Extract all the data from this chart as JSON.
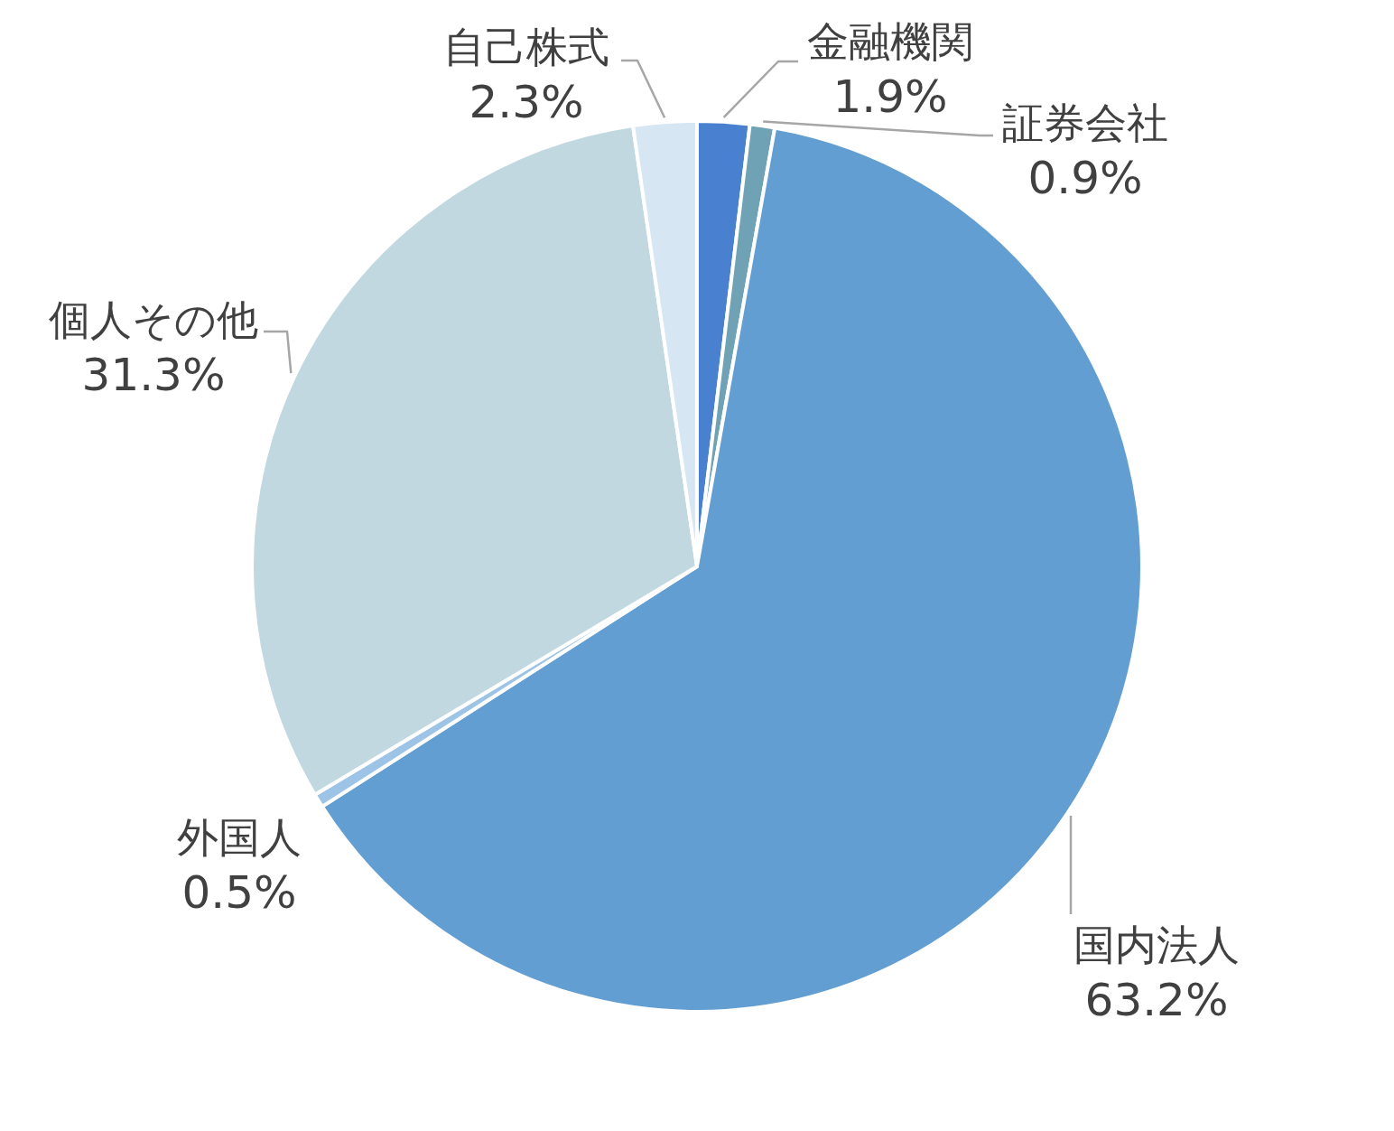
{
  "chart_data": {
    "type": "pie",
    "categories": [
      "金融機関",
      "証券会社",
      "国内法人",
      "外国人",
      "個人その他",
      "自己株式"
    ],
    "values": [
      1.9,
      0.9,
      63.2,
      0.5,
      31.3,
      2.3
    ],
    "colors": [
      "#4a80d0",
      "#6fa2b4",
      "#629ed1",
      "#9dc3e6",
      "#c1d8e0",
      "#d6e6f3"
    ],
    "value_labels": [
      "1.9%",
      "0.9%",
      "63.2%",
      "0.5%",
      "31.3%",
      "2.3%"
    ]
  }
}
